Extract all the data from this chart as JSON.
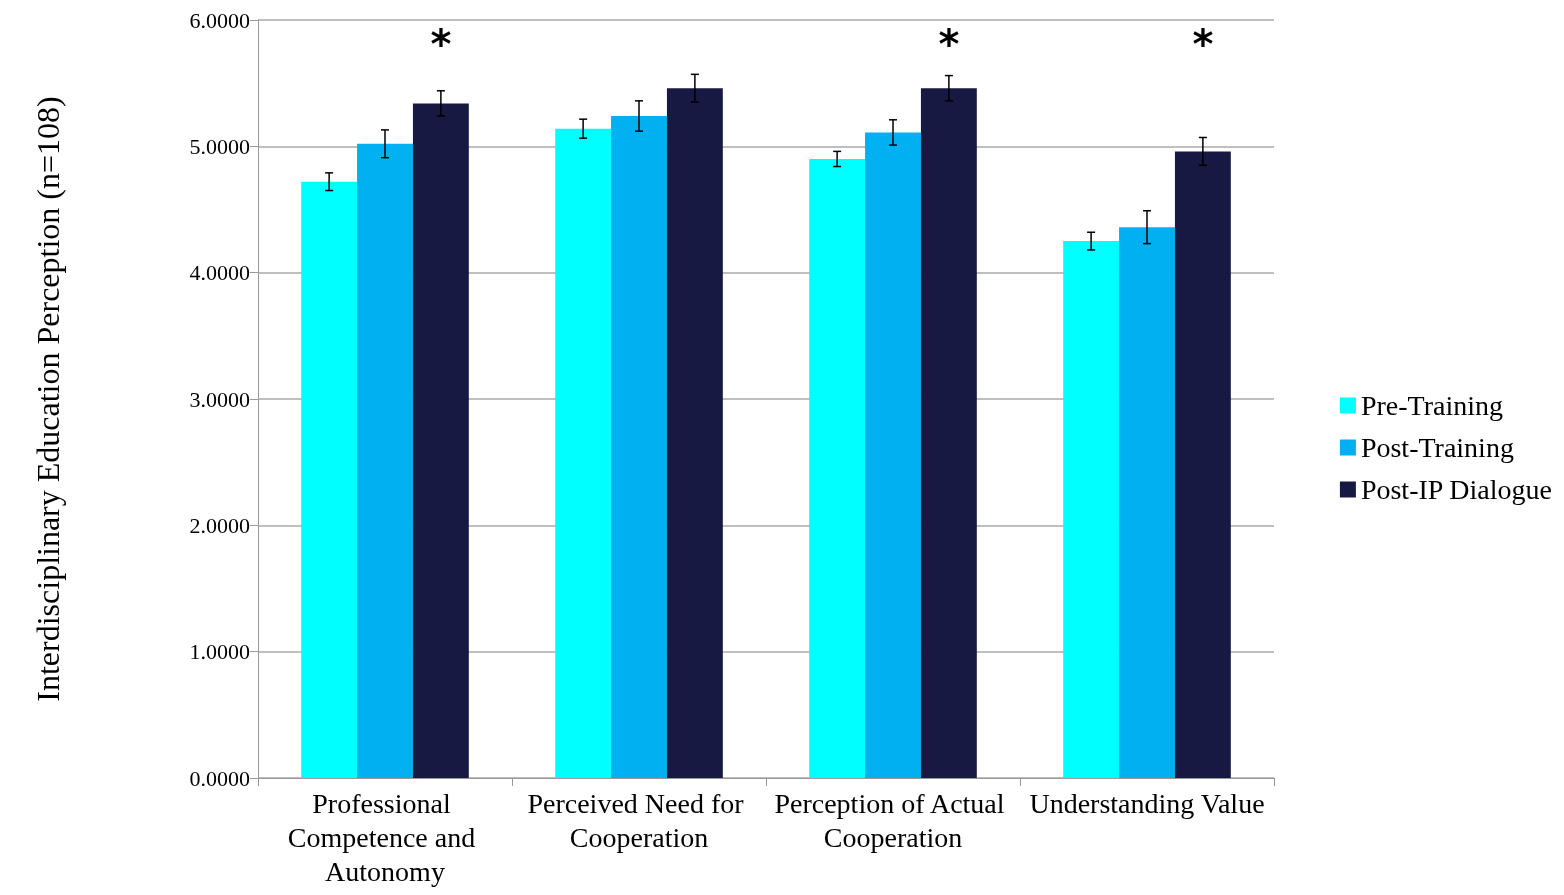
{
  "chart_data": {
    "type": "bar",
    "ylabel": "Interdisciplinary Education Perception (n=108)",
    "categories": [
      "Professional Competence and Autonomy",
      "Perceived Need for Cooperation",
      "Perception of Actual Cooperation",
      "Understanding Value"
    ],
    "series": [
      {
        "name": "Pre-Training",
        "color": "#00ffff",
        "values": [
          4.72,
          5.14,
          4.9,
          4.25
        ],
        "errors": [
          0.07,
          0.075,
          0.06,
          0.07
        ]
      },
      {
        "name": "Post-Training",
        "color": "#00b0f0",
        "values": [
          5.02,
          5.24,
          5.11,
          4.36
        ],
        "errors": [
          0.11,
          0.12,
          0.1,
          0.13
        ]
      },
      {
        "name": "Post-IP Dialogue",
        "color": "#171942",
        "values": [
          5.34,
          5.46,
          5.46,
          4.96
        ],
        "errors": [
          0.1,
          0.11,
          0.1,
          0.11
        ]
      }
    ],
    "ylim": [
      0,
      6
    ],
    "yticks": [
      {
        "value": 0,
        "label": "0.0000"
      },
      {
        "value": 1,
        "label": "1.0000"
      },
      {
        "value": 2,
        "label": "2.0000"
      },
      {
        "value": 3,
        "label": "3.0000"
      },
      {
        "value": 4,
        "label": "4.0000"
      },
      {
        "value": 5,
        "label": "5.0000"
      },
      {
        "value": 6,
        "label": "6.0000"
      }
    ],
    "grid": "y",
    "legend": "right",
    "annotations": [
      "*",
      "*",
      "*"
    ]
  }
}
